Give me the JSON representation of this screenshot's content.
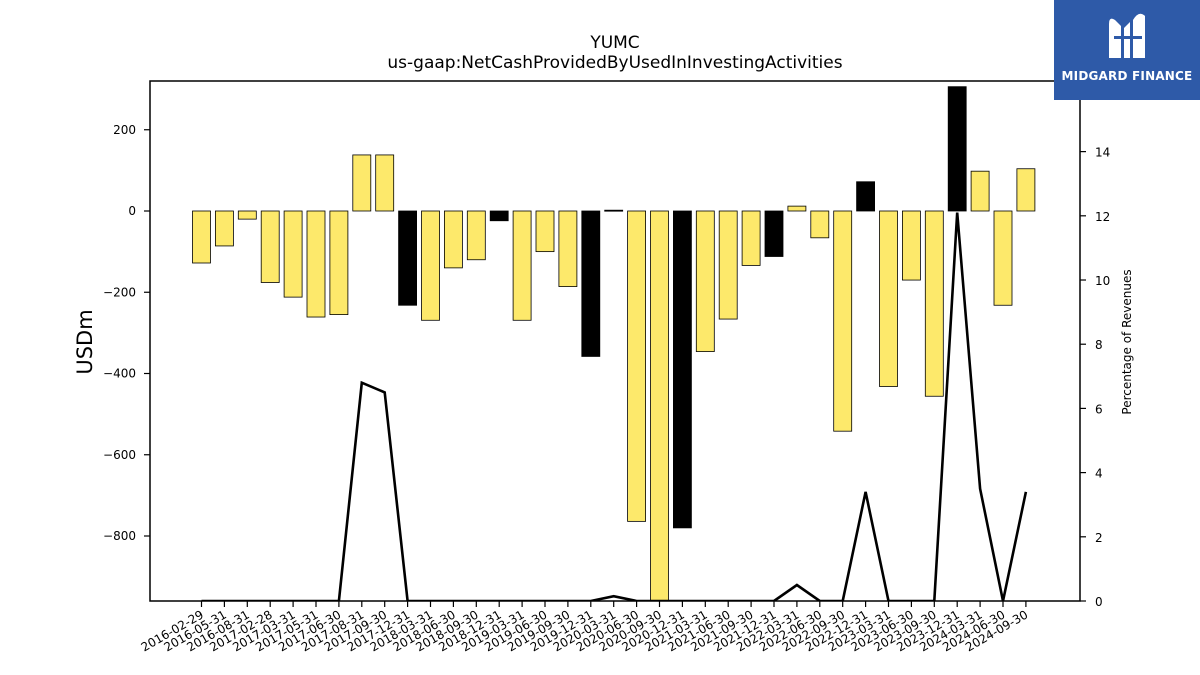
{
  "logo": {
    "text": "MIDGARD FINANCE",
    "icon": "midgard-logo-icon",
    "color": "#2e5aa8"
  },
  "chart_data": {
    "type": "bar",
    "title": "YUMC",
    "subtitle": "us-gaap:NetCashProvidedByUsedInInvestingActivities",
    "ylabel": "USDm",
    "y2label": "Percentage of Revenues",
    "ylim": [
      -960,
      320
    ],
    "y2lim": [
      0,
      16.2
    ],
    "yticks": [
      200,
      0,
      -200,
      -400,
      -600,
      -800
    ],
    "ytick_labels": [
      "200",
      "0",
      "−200",
      "−400",
      "−600",
      "−800"
    ],
    "y2ticks": [
      0,
      2,
      4,
      6,
      8,
      10,
      12,
      14
    ],
    "y2tick_labels": [
      "0",
      "2",
      "4",
      "6",
      "8",
      "10",
      "12",
      "14"
    ],
    "colors": {
      "quarter": "#fde96b",
      "annual": "#000000",
      "line": "#000000"
    },
    "categories": [
      "2016-02-29",
      "2016-05-31",
      "2016-08-31",
      "2017-02-28",
      "2017-03-31",
      "2017-05-31",
      "2017-06-30",
      "2017-08-31",
      "2017-09-30",
      "2017-12-31",
      "2018-03-31",
      "2018-06-30",
      "2018-09-30",
      "2018-12-31",
      "2019-03-31",
      "2019-06-30",
      "2019-09-30",
      "2019-12-31",
      "2020-03-31",
      "2020-06-30",
      "2020-09-30",
      "2020-12-31",
      "2021-03-31",
      "2021-06-30",
      "2021-09-30",
      "2021-12-31",
      "2022-03-31",
      "2022-06-30",
      "2022-09-30",
      "2022-12-31",
      "2023-03-31",
      "2023-06-30",
      "2023-09-30",
      "2023-12-31",
      "2024-03-31",
      "2024-06-30",
      "2024-09-30"
    ],
    "values": [
      -128,
      -86,
      -20,
      -176,
      -212,
      -261,
      -255,
      138,
      138,
      -232,
      -269,
      -140,
      -120,
      -24,
      -269,
      -100,
      -186,
      -358,
      2,
      -764,
      -990,
      -780,
      -346,
      -266,
      -134,
      -112,
      12,
      -66,
      -542,
      72,
      -432,
      -170,
      -456,
      306,
      98,
      -232,
      104
    ],
    "annual": [
      false,
      false,
      false,
      false,
      false,
      false,
      false,
      false,
      false,
      true,
      false,
      false,
      false,
      true,
      false,
      false,
      false,
      true,
      true,
      false,
      false,
      true,
      false,
      false,
      false,
      true,
      false,
      false,
      false,
      true,
      false,
      false,
      false,
      true,
      false,
      false,
      false
    ],
    "percent_of_revenues": [
      0,
      0,
      0,
      0,
      0,
      0,
      0,
      6.8,
      6.5,
      0,
      0,
      0,
      0,
      0,
      0,
      0,
      0,
      0,
      0.15,
      0,
      0,
      0,
      0,
      0,
      0,
      0,
      0.5,
      0,
      0,
      3.4,
      0,
      0,
      0,
      12.1,
      3.5,
      0,
      3.4
    ]
  }
}
